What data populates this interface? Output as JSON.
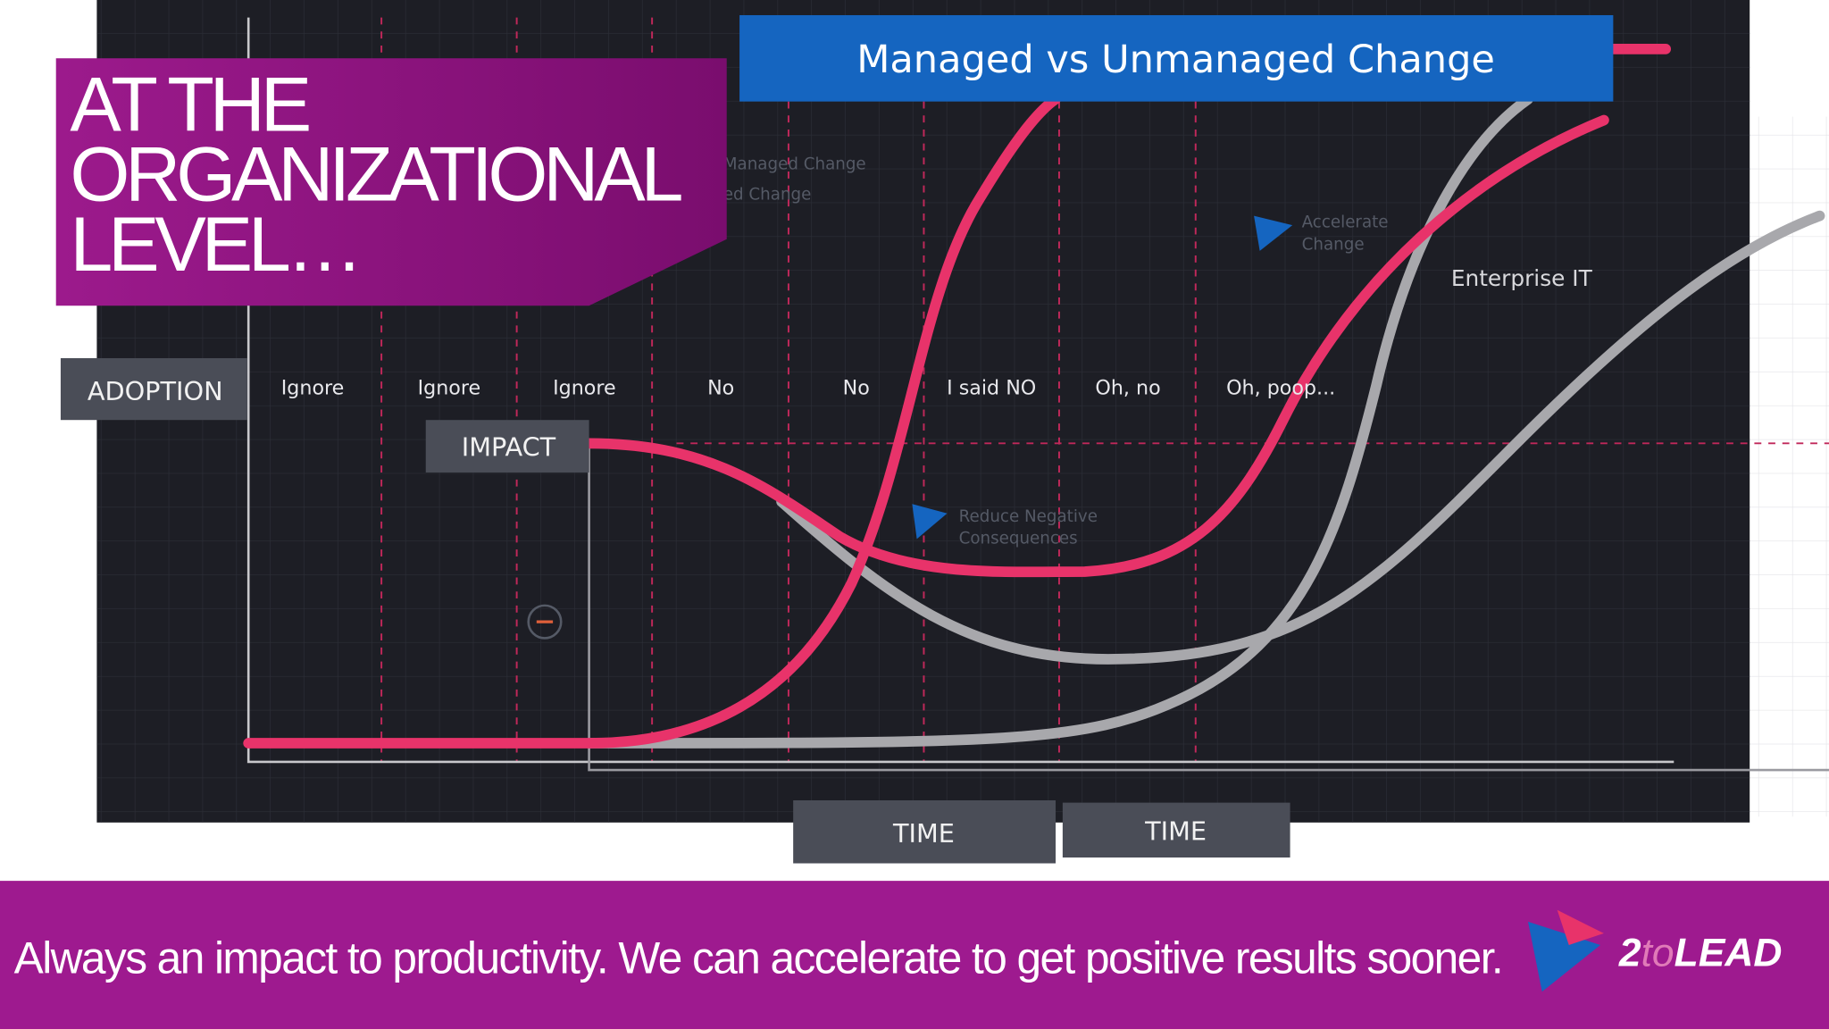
{
  "title_box": {
    "lines": [
      "AT THE",
      "ORGANIZATIONAL",
      "LEVEL…"
    ]
  },
  "chart": {
    "title": "Managed vs Unmanaged Change",
    "y_label": "ADOPTION",
    "impact_label": "IMPACT",
    "stages": [
      "Ignore",
      "Ignore",
      "Ignore",
      "No",
      "No",
      "I said NO",
      "Oh, no",
      "Oh, poop..."
    ],
    "x_labels": [
      "TIME",
      "TIME"
    ],
    "annotations": {
      "enterprise": "Enterprise IT",
      "legend": [
        "Managed Change",
        "ed Change"
      ],
      "accelerate": [
        "Accelerate",
        "Change"
      ],
      "reduce": [
        "Reduce Negative",
        "Consequences"
      ]
    }
  },
  "footer": {
    "caption": "Always an impact to productivity. We can accelerate to get positive results sooner.",
    "logo": [
      "2",
      "to",
      "LEAD"
    ]
  }
}
